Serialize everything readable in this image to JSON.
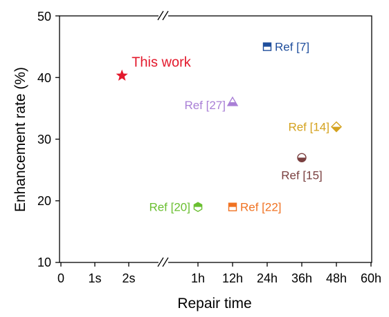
{
  "chart_data": {
    "type": "scatter",
    "title": "",
    "xlabel": "Repair time",
    "ylabel": "Enhancement rate (%)",
    "ylim": [
      10,
      50
    ],
    "y_ticks": [
      "10",
      "20",
      "30",
      "40",
      "50"
    ],
    "x_ticks": [
      "0",
      "1s",
      "2s",
      "1h",
      "12h",
      "24h",
      "36h",
      "48h",
      "60h"
    ],
    "axis_break": "between 2s and 1h",
    "grid": false,
    "points": [
      {
        "label": "This work",
        "x": "1.8s",
        "y": 40.3,
        "marker": "star",
        "color": "#e3192c"
      },
      {
        "label": "Ref [7]",
        "x": "24h",
        "y": 45.0,
        "marker": "square-half",
        "color": "#1f4e9c"
      },
      {
        "label": "Ref [27]",
        "x": "12h",
        "y": 36.0,
        "marker": "triangle-half",
        "color": "#a97fd6"
      },
      {
        "label": "Ref [14]",
        "x": "48h",
        "y": 32.0,
        "marker": "diamond-half",
        "color": "#d4a21e"
      },
      {
        "label": "Ref [15]",
        "x": "36h",
        "y": 27.0,
        "marker": "circle-half",
        "color": "#7a4040"
      },
      {
        "label": "Ref [20]",
        "x": "1h",
        "y": 19.0,
        "marker": "hexagon-half",
        "color": "#6abf30"
      },
      {
        "label": "Ref [22]",
        "x": "12h",
        "y": 19.0,
        "marker": "square-half",
        "color": "#f07222"
      }
    ]
  }
}
